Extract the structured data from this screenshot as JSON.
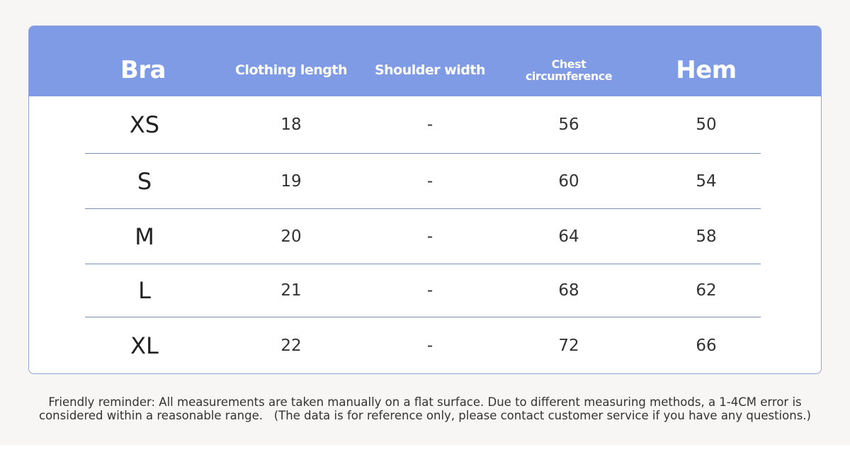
{
  "table": {
    "header": [
      "Bra",
      "Clothing length",
      "Shoulder width",
      "Chest circumference",
      "Hem"
    ],
    "rows": [
      [
        "XS",
        18,
        "-",
        56,
        50
      ],
      [
        "S",
        19,
        "-",
        60,
        54
      ],
      [
        "M",
        20,
        "-",
        64,
        58
      ],
      [
        "L",
        21,
        "-",
        68,
        62
      ],
      [
        "XL",
        22,
        "-",
        72,
        66
      ]
    ]
  },
  "footnote": "Friendly reminder: All measurements are taken manually on a flat surface. Due to different measuring methods, a 1-4CM error is considered within a reasonable range.   (The data is for reference only, please contact customer service if you have any questions.)"
}
